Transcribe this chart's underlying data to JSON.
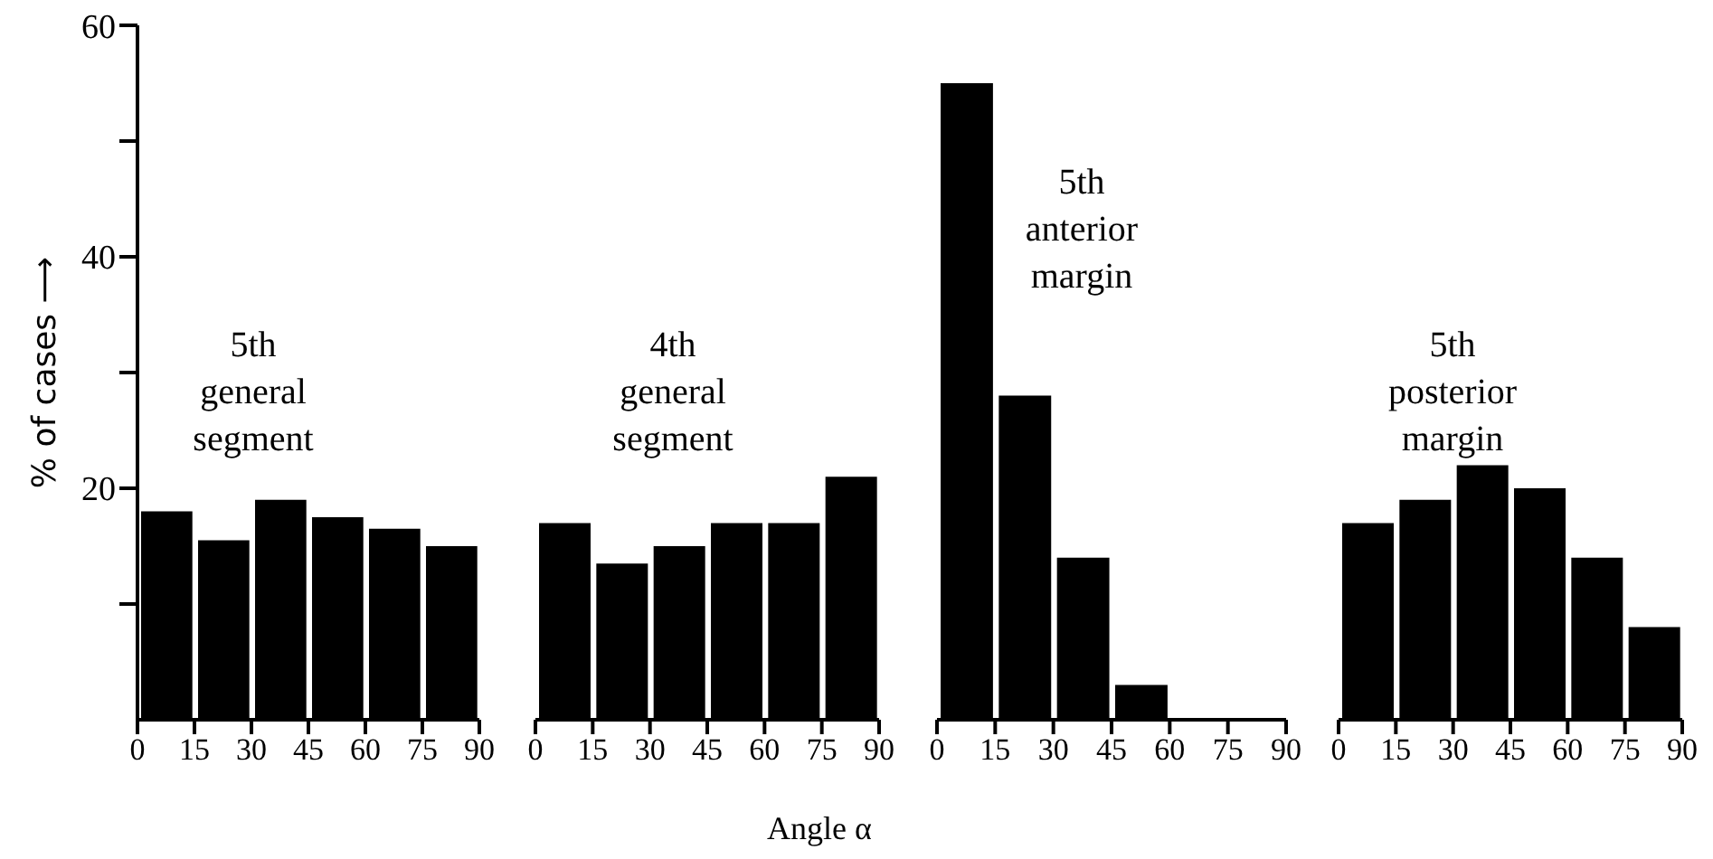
{
  "chart_data": [
    {
      "type": "histogram",
      "ylabel": "% of cases ⟶",
      "annotations": [
        "5th\ngeneral\nsegment"
      ],
      "bins": [
        0,
        15,
        30,
        45,
        60,
        75,
        90
      ],
      "values": [
        18,
        15.5,
        19,
        17.5,
        16.5,
        15
      ],
      "color": "#000000",
      "xlim": [
        0,
        90
      ],
      "xticks": [
        0,
        15,
        30,
        45,
        60,
        75,
        90
      ],
      "ylim": [
        0,
        60
      ],
      "yticks": [
        {
          "value": 10,
          "label": null
        },
        20,
        {
          "value": 30,
          "label": null
        },
        40,
        {
          "value": 50,
          "label": null
        },
        60
      ]
    },
    {
      "type": "histogram",
      "xlabel": "Angle α",
      "annotations": [
        "4th\ngeneral\nsegment"
      ],
      "bins": [
        0,
        15,
        30,
        45,
        60,
        75,
        90
      ],
      "values": [
        17,
        13.5,
        15,
        17,
        17,
        21
      ],
      "color": "#000000",
      "xlim": [
        0,
        90
      ],
      "xticks": [
        0,
        15,
        30,
        45,
        60,
        75,
        90
      ],
      "ylim": [
        0,
        60
      ],
      "tick_labels": "x"
    },
    {
      "type": "histogram",
      "annotations": [
        "5th\nanterior\nmargin"
      ],
      "bins": [
        0,
        15,
        30,
        45,
        60,
        75,
        90
      ],
      "values": [
        55,
        28,
        14,
        3,
        0,
        0
      ],
      "color": "#000000",
      "xlim": [
        0,
        90
      ],
      "xticks": [
        0,
        15,
        30,
        45,
        60,
        75,
        90
      ],
      "ylim": [
        0,
        60
      ],
      "tick_labels": "x"
    },
    {
      "type": "histogram",
      "annotations": [
        "5th\nposterior\nmargin"
      ],
      "bins": [
        0,
        15,
        30,
        45,
        60,
        75,
        90
      ],
      "values": [
        17,
        19,
        22,
        20,
        14,
        8
      ],
      "color": "#000000",
      "xlim": [
        0,
        90
      ],
      "xticks": [
        0,
        15,
        30,
        45,
        60,
        75,
        90
      ],
      "ylim": [
        0,
        60
      ],
      "tick_labels": "x"
    }
  ]
}
